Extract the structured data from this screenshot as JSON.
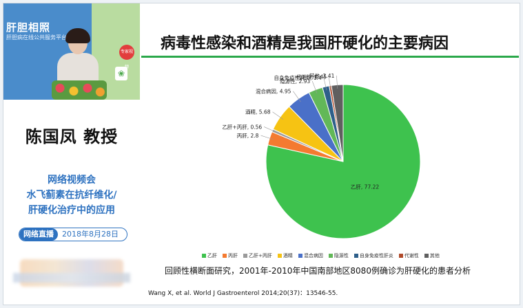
{
  "left_panel": {
    "video": {
      "banner": "肝胆相照",
      "sub": "肝胆病在线公共服务平台",
      "badge": "专家视频"
    },
    "speaker_name": "陈国凤  教授",
    "webinar_lines": [
      "网络视频会",
      "水飞蓟素在抗纤维化/",
      "肝硬化治疗中的应用"
    ],
    "live_tag": "网络直播",
    "live_date": "2018年8月28日"
  },
  "slide": {
    "title": "病毒性感染和酒精是我国肝硬化的主要病因",
    "caption": "回顾性横断面研究，2001年-2010年中国南部地区8080例确诊为肝硬化的患者分析",
    "citation": "Wang X, et al. World J Gastroenterol 2014;20(37)：13546-55."
  },
  "chart_data": {
    "type": "pie",
    "slices": [
      {
        "name": "乙肝",
        "value": 77.22,
        "label": "乙肝, 77.22",
        "color": "#3ec24e"
      },
      {
        "name": "丙肝",
        "value": 2.8,
        "label": "丙肝, 2.8",
        "color": "#f47a30"
      },
      {
        "name": "乙肝+丙肝",
        "value": 0.56,
        "label": "乙肝+丙肝, 0.56",
        "color": "#9a9a9a"
      },
      {
        "name": "酒精",
        "value": 5.68,
        "label": "酒精, 5.68",
        "color": "#f6c313"
      },
      {
        "name": "混合病因",
        "value": 4.95,
        "label": "混合病因, 4.95",
        "color": "#4a70c8"
      },
      {
        "name": "隐源性",
        "value": 2.93,
        "label": "隐源性, 2.93",
        "color": "#62b858"
      },
      {
        "name": "自身免疫性肝炎",
        "value": 1.4,
        "label": "自身免疫性肝炎, 1.4",
        "color": "#2e5f8a"
      },
      {
        "name": "代谢性",
        "value": 0.45,
        "label": "代谢性, 0.45",
        "color": "#b04a2a"
      },
      {
        "name": "其他",
        "value": 2.41,
        "label": "其他, 2.41",
        "color": "#5f5f5f"
      }
    ],
    "legend_position": "bottom"
  }
}
